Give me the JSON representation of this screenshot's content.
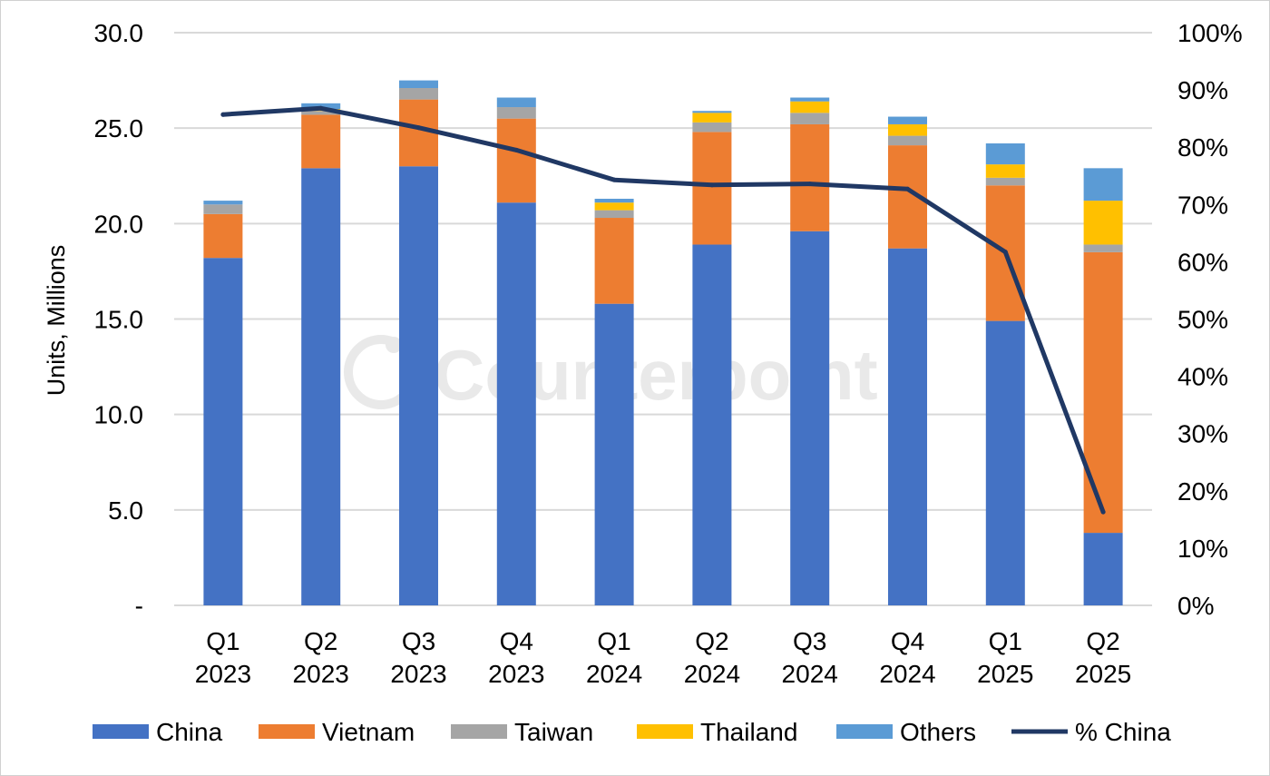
{
  "chart_data": {
    "type": "bar",
    "stacked": true,
    "categories": [
      [
        "Q1",
        "2023"
      ],
      [
        "Q2",
        "2023"
      ],
      [
        "Q3",
        "2023"
      ],
      [
        "Q4",
        "2023"
      ],
      [
        "Q1",
        "2024"
      ],
      [
        "Q2",
        "2024"
      ],
      [
        "Q3",
        "2024"
      ],
      [
        "Q4",
        "2024"
      ],
      [
        "Q1",
        "2025"
      ],
      [
        "Q2",
        "2025"
      ]
    ],
    "series": [
      {
        "name": "China",
        "color": "#4472C4",
        "values": [
          18.2,
          22.9,
          23.0,
          21.1,
          15.8,
          18.9,
          19.6,
          18.7,
          14.9,
          3.8
        ]
      },
      {
        "name": "Vietnam",
        "color": "#ED7D31",
        "values": [
          2.3,
          2.8,
          3.5,
          4.4,
          4.5,
          5.9,
          5.6,
          5.4,
          7.1,
          14.7
        ]
      },
      {
        "name": "Taiwan",
        "color": "#A5A5A5",
        "values": [
          0.5,
          0.2,
          0.6,
          0.6,
          0.4,
          0.5,
          0.6,
          0.5,
          0.4,
          0.4
        ]
      },
      {
        "name": "Thailand",
        "color": "#FFC000",
        "values": [
          0.0,
          0.1,
          0.0,
          0.0,
          0.4,
          0.5,
          0.6,
          0.6,
          0.7,
          2.3
        ]
      },
      {
        "name": "Others",
        "color": "#5B9BD5",
        "values": [
          0.2,
          0.3,
          0.4,
          0.5,
          0.2,
          0.1,
          0.2,
          0.4,
          1.1,
          1.7
        ]
      }
    ],
    "line_series": {
      "name": "% China",
      "color": "#203864",
      "axis": "right",
      "values": [
        85.7,
        86.8,
        83.4,
        79.5,
        74.3,
        73.4,
        73.6,
        72.7,
        61.7,
        16.3
      ]
    },
    "ylabel": "Units, Millions",
    "ylim": [
      0,
      30
    ],
    "yticks": [
      "-",
      "5.0",
      "10.0",
      "15.0",
      "20.0",
      "25.0",
      "30.0"
    ],
    "y2lim": [
      0,
      100
    ],
    "y2ticks": [
      "0%",
      "10%",
      "20%",
      "30%",
      "40%",
      "50%",
      "60%",
      "70%",
      "80%",
      "90%",
      "100%"
    ],
    "grid": true,
    "legend_position": "bottom",
    "watermark": "Counterpoint"
  }
}
